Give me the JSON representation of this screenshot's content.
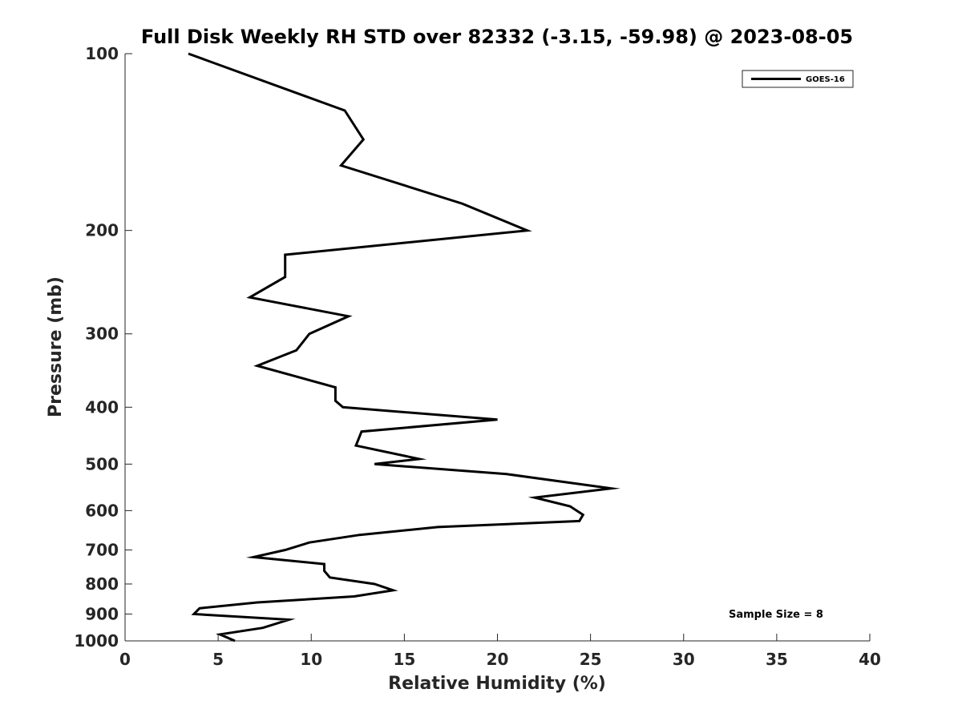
{
  "chart_data": {
    "type": "line",
    "title": "Full Disk Weekly RH STD over 82332 (-3.15, -59.98) @ 2023-08-05",
    "xlabel": "Relative Humidity (%)",
    "ylabel": "Pressure (mb)",
    "xlim": [
      0,
      40
    ],
    "ylim": [
      100,
      1000
    ],
    "yscale": "log",
    "y_reversed": true,
    "grid": false,
    "x_ticks": [
      0,
      5,
      10,
      15,
      20,
      25,
      30,
      35,
      40
    ],
    "y_ticks": [
      100,
      200,
      300,
      400,
      500,
      600,
      700,
      800,
      900,
      1000
    ],
    "legend": {
      "position": "top-right",
      "entries": [
        "GOES-16"
      ]
    },
    "annotation": "Sample Size = 8",
    "series": [
      {
        "name": "GOES-16",
        "color": "#000000",
        "x": [
          3.4,
          11.8,
          12.8,
          11.6,
          18.1,
          21.6,
          8.6,
          8.6,
          6.7,
          12.0,
          9.9,
          9.2,
          7.1,
          11.3,
          11.3,
          11.7,
          20.0,
          12.7,
          12.4,
          15.8,
          13.4,
          20.5,
          26.1,
          22.0,
          23.9,
          24.6,
          24.4,
          16.8,
          12.6,
          9.9,
          8.6,
          6.9,
          10.7,
          10.7,
          11.0,
          13.4,
          14.4,
          12.3,
          7.1,
          4.0,
          3.7,
          8.8,
          7.4,
          5.1,
          5.9
        ],
        "y": [
          100,
          125,
          140,
          155,
          180,
          200,
          220,
          240,
          260,
          280,
          300,
          320,
          340,
          370,
          390,
          400,
          420,
          440,
          465,
          490,
          500,
          520,
          550,
          570,
          590,
          610,
          625,
          640,
          660,
          680,
          700,
          720,
          740,
          760,
          780,
          800,
          820,
          840,
          860,
          880,
          900,
          920,
          950,
          975,
          1000
        ]
      }
    ]
  }
}
